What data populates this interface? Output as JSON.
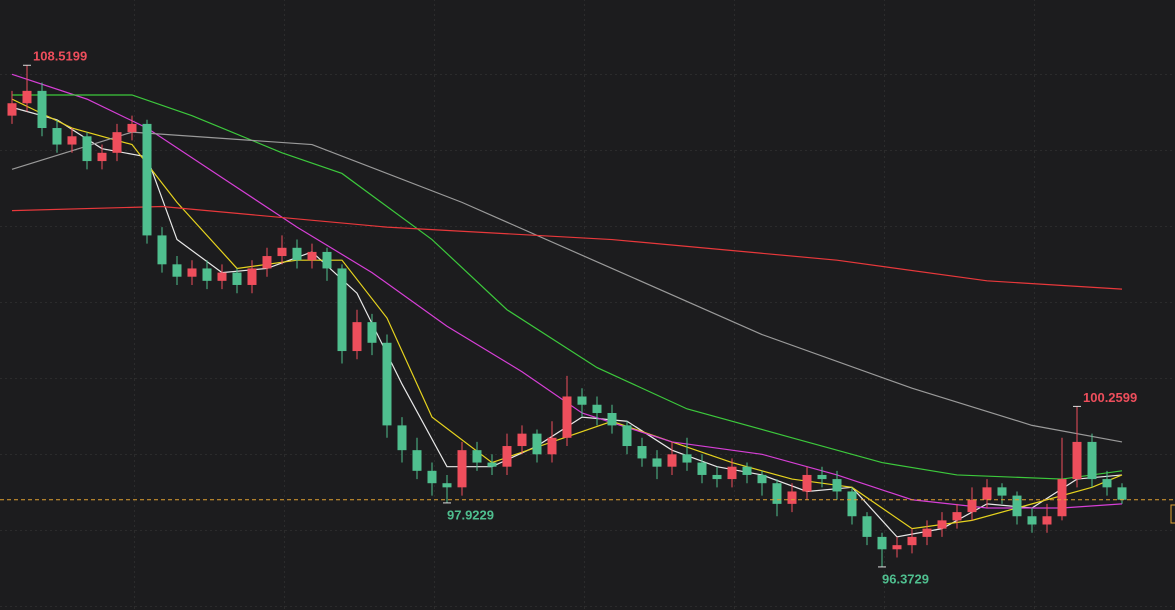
{
  "chart_data": {
    "type": "candlestick",
    "ylim": [
      95.33,
      110.1
    ],
    "up_color": "#ee4e5c",
    "down_color": "#4fbf8f",
    "open": [
      107.3,
      107.6,
      107.9,
      107.0,
      106.6,
      106.8,
      106.2,
      106.4,
      106.9,
      107.1,
      104.4,
      103.7,
      103.4,
      103.6,
      103.3,
      103.5,
      103.2,
      103.6,
      103.9,
      104.1,
      103.8,
      104.0,
      103.6,
      101.6,
      102.3,
      101.8,
      99.8,
      99.2,
      98.7,
      98.4,
      98.3,
      99.2,
      98.9,
      98.8,
      99.3,
      99.6,
      99.1,
      99.5,
      100.5,
      100.3,
      100.1,
      99.8,
      99.3,
      99.0,
      98.8,
      99.1,
      98.9,
      98.6,
      98.5,
      98.8,
      98.6,
      98.4,
      97.9,
      98.2,
      98.6,
      98.5,
      98.2,
      97.6,
      97.1,
      96.8,
      96.9,
      97.1,
      97.3,
      97.5,
      97.7,
      98.0,
      98.3,
      98.1,
      97.6,
      97.4,
      97.6,
      98.5,
      99.4,
      98.5,
      98.3
    ],
    "high": [
      107.9,
      108.5199,
      108.1,
      107.2,
      107.0,
      106.9,
      106.6,
      107.1,
      107.3,
      107.2,
      104.6,
      103.9,
      103.8,
      103.8,
      103.7,
      103.6,
      103.8,
      104.1,
      104.4,
      104.3,
      104.2,
      104.1,
      103.7,
      102.6,
      102.5,
      102.0,
      100.0,
      99.5,
      98.9,
      98.6,
      99.4,
      99.4,
      99.1,
      99.6,
      99.8,
      99.7,
      99.9,
      101.0,
      100.7,
      100.5,
      100.3,
      99.9,
      99.5,
      99.2,
      99.4,
      99.5,
      99.1,
      98.8,
      99.0,
      98.9,
      98.7,
      98.5,
      98.4,
      98.8,
      98.8,
      98.7,
      98.3,
      97.7,
      97.2,
      97.1,
      97.3,
      97.5,
      97.7,
      97.9,
      98.3,
      98.5,
      98.4,
      98.2,
      97.8,
      97.9,
      99.5,
      100.2599,
      99.6,
      98.7,
      98.4
    ],
    "low": [
      107.1,
      107.4,
      106.8,
      106.4,
      106.4,
      106.0,
      106.0,
      106.2,
      106.7,
      104.2,
      103.5,
      103.2,
      103.2,
      103.1,
      103.1,
      103.0,
      103.0,
      103.4,
      103.7,
      103.6,
      103.6,
      103.3,
      101.3,
      101.4,
      101.5,
      99.5,
      98.9,
      98.5,
      98.1,
      97.9229,
      98.1,
      98.7,
      98.6,
      98.6,
      99.1,
      98.9,
      98.9,
      99.3,
      100.0,
      99.8,
      99.6,
      99.1,
      98.8,
      98.5,
      98.6,
      98.7,
      98.4,
      98.3,
      98.3,
      98.4,
      98.1,
      97.6,
      97.7,
      98.0,
      98.3,
      98.0,
      97.4,
      96.9,
      96.3729,
      96.6,
      96.7,
      96.9,
      97.1,
      97.3,
      97.5,
      97.8,
      97.9,
      97.4,
      97.2,
      97.2,
      97.5,
      98.3,
      98.3,
      98.1,
      97.9
    ],
    "close": [
      107.6,
      107.9,
      107.0,
      106.6,
      106.8,
      106.2,
      106.4,
      106.9,
      107.1,
      104.4,
      103.7,
      103.4,
      103.6,
      103.3,
      103.5,
      103.2,
      103.6,
      103.9,
      104.1,
      103.8,
      104.0,
      103.6,
      101.6,
      102.3,
      101.8,
      99.8,
      99.2,
      98.7,
      98.4,
      98.3,
      99.2,
      98.9,
      98.8,
      99.3,
      99.6,
      99.1,
      99.5,
      100.5,
      100.3,
      100.1,
      99.8,
      99.3,
      99.0,
      98.8,
      99.1,
      98.9,
      98.6,
      98.5,
      98.8,
      98.6,
      98.4,
      97.9,
      98.2,
      98.6,
      98.5,
      98.2,
      97.6,
      97.1,
      96.8,
      96.9,
      97.1,
      97.3,
      97.5,
      97.7,
      98.0,
      98.3,
      98.1,
      97.6,
      97.4,
      97.6,
      98.5,
      99.4,
      98.5,
      98.3,
      98.0
    ],
    "lines": [
      {
        "color": "#e8e8e8",
        "x": [
          0,
          3,
          6,
          9,
          11,
          14,
          17,
          20,
          23,
          26,
          29,
          32,
          35,
          38,
          41,
          44,
          47,
          50,
          53,
          56,
          59,
          62,
          65,
          68,
          71,
          74
        ],
        "values": [
          107.5,
          107.2,
          106.5,
          106.3,
          104.3,
          103.5,
          103.6,
          104.0,
          103.0,
          100.8,
          98.8,
          98.8,
          99.3,
          100.0,
          99.9,
          99.2,
          98.8,
          98.6,
          98.2,
          98.3,
          97.1,
          97.3,
          97.9,
          97.8,
          98.5,
          98.6
        ]
      },
      {
        "color": "#e6d31e",
        "x": [
          0,
          4,
          8,
          11,
          15,
          19,
          22,
          25,
          28,
          32,
          36,
          40,
          44,
          48,
          52,
          56,
          60,
          64,
          68,
          72,
          74
        ],
        "values": [
          107.7,
          107.0,
          106.6,
          105.2,
          103.6,
          103.8,
          103.8,
          102.4,
          100.0,
          98.9,
          99.4,
          99.9,
          99.4,
          98.9,
          98.5,
          98.3,
          97.3,
          97.5,
          97.9,
          98.3,
          98.6
        ]
      },
      {
        "color": "#d63fd6",
        "x": [
          0,
          5,
          9,
          14,
          19,
          24,
          29,
          34,
          38,
          44,
          50,
          55,
          60,
          65,
          70,
          74
        ],
        "values": [
          108.3,
          107.7,
          107.0,
          105.8,
          104.6,
          103.5,
          102.2,
          101.1,
          100.1,
          99.4,
          99.1,
          98.6,
          98.0,
          97.8,
          97.8,
          97.9
        ]
      },
      {
        "color": "#3cc83c",
        "x": [
          0,
          8,
          12,
          18,
          22,
          28,
          33,
          39,
          45,
          52,
          58,
          63,
          70,
          74
        ],
        "values": [
          107.8,
          107.8,
          107.3,
          106.4,
          105.9,
          104.3,
          102.6,
          101.2,
          100.2,
          99.5,
          98.9,
          98.6,
          98.5,
          98.7
        ]
      },
      {
        "color": "#9a9a9a",
        "x": [
          0,
          8,
          20,
          30,
          40,
          50,
          60,
          68,
          74
        ],
        "values": [
          106.0,
          106.9,
          106.6,
          105.2,
          103.6,
          102.0,
          100.7,
          99.8,
          99.4
        ]
      },
      {
        "color": "#e8383b",
        "x": [
          0,
          10,
          25,
          40,
          55,
          65,
          74
        ],
        "values": [
          105.0,
          105.1,
          104.6,
          104.3,
          103.8,
          103.3,
          103.1
        ]
      }
    ]
  }
}
